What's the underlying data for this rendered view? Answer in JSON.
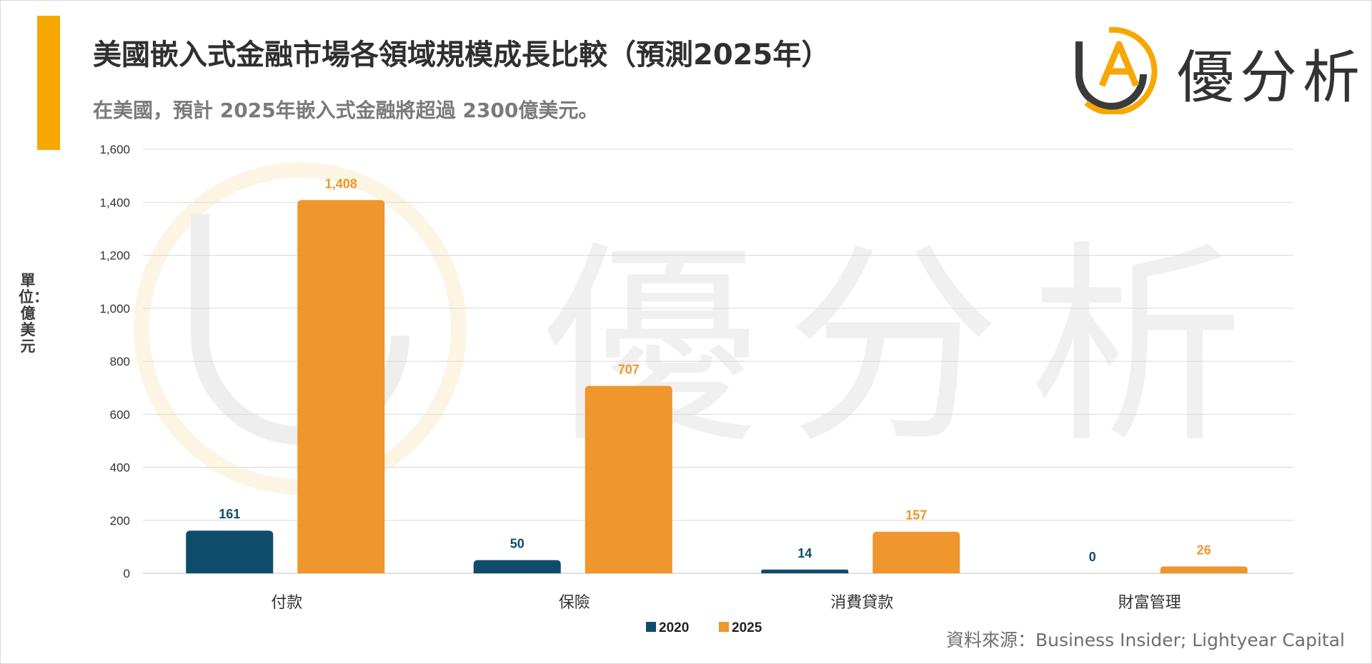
{
  "header": {
    "title": "美國嵌入式金融市場各領域規模成長比較（預測2025年）",
    "subtitle": "在美國，預計 2025年嵌入式金融將超過 2300億美元。"
  },
  "logo": {
    "text": "優分析",
    "mark": "UA",
    "colors": {
      "ring_dark": "#3a3a3a",
      "ring_accent": "#f6a800"
    }
  },
  "unit_label": "單位：億美元",
  "source": "資料來源：Business Insider; Lightyear Capital",
  "watermark": {
    "text": "優分析"
  },
  "colors": {
    "accent_bar": "#f6a800",
    "series_2020": "#0f4c6b",
    "series_2025": "#ef962c"
  },
  "chart_data": {
    "type": "bar",
    "categories": [
      "付款",
      "保險",
      "消費貸款",
      "財富管理"
    ],
    "series": [
      {
        "name": "2020",
        "values": [
          161,
          50,
          14,
          0
        ],
        "color": "#0f4c6b"
      },
      {
        "name": "2025",
        "values": [
          1408,
          707,
          157,
          26
        ],
        "color": "#ef962c"
      }
    ],
    "data_labels": [
      [
        "161",
        "50",
        "14",
        "0"
      ],
      [
        "1,408",
        "707",
        "157",
        "26"
      ]
    ],
    "y_ticks": [
      "0",
      "200",
      "400",
      "600",
      "800",
      "1,000",
      "1,200",
      "1,400",
      "1,600"
    ],
    "ylim": [
      0,
      1600
    ],
    "grid": true,
    "legend_position": "bottom",
    "ylabel": "單位：億美元"
  }
}
